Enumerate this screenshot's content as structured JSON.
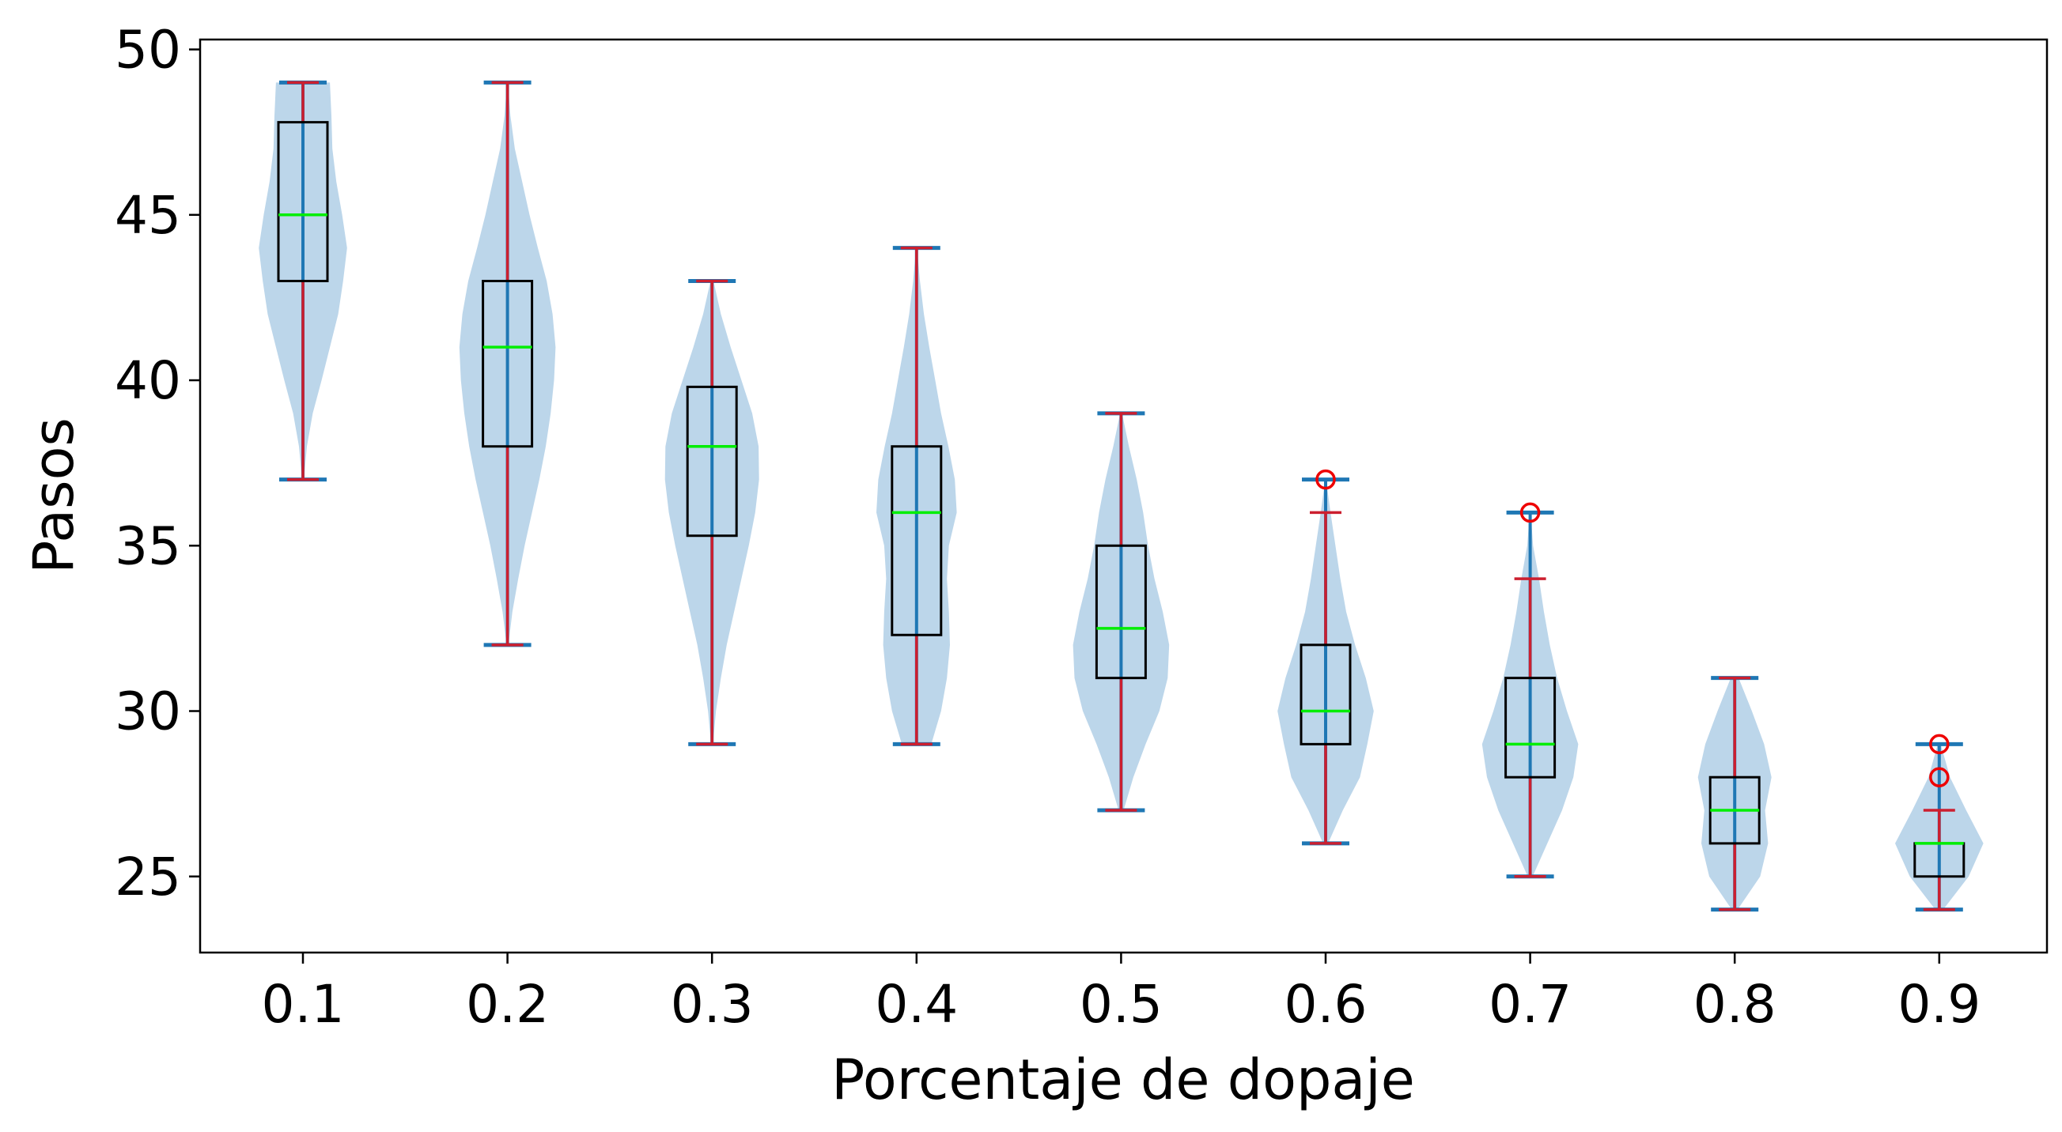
{
  "chart_data": {
    "type": "violin-box",
    "title": "",
    "xlabel": "Porcentaje de dopaje",
    "ylabel": "Pasos",
    "categories": [
      "0.1",
      "0.2",
      "0.3",
      "0.4",
      "0.5",
      "0.6",
      "0.7",
      "0.8",
      "0.9"
    ],
    "ylim": [
      22.7,
      50.3
    ],
    "yticks": [
      25,
      30,
      35,
      40,
      45,
      50
    ],
    "grid": false,
    "legend": "none",
    "colors": {
      "violin": "#bcd6ea",
      "violin_center": "#1f77b4",
      "whisker": "#cc1f2f",
      "median": "#00ee00",
      "box": "#000000",
      "outlier": "#ee0000"
    },
    "groups": [
      {
        "category": "0.1",
        "min": 37,
        "max": 49,
        "q1": 43,
        "median": 45,
        "q3": 47.8,
        "wlow": 37,
        "whigh": 49,
        "outliers": [],
        "density": [
          [
            37,
            0.02
          ],
          [
            38,
            0.08
          ],
          [
            39,
            0.2
          ],
          [
            40,
            0.38
          ],
          [
            41,
            0.55
          ],
          [
            42,
            0.72
          ],
          [
            43,
            0.82
          ],
          [
            44,
            0.9
          ],
          [
            45,
            0.8
          ],
          [
            46,
            0.68
          ],
          [
            47,
            0.6
          ],
          [
            48,
            0.58
          ],
          [
            49,
            0.55
          ]
        ]
      },
      {
        "category": "0.2",
        "min": 32,
        "max": 49,
        "q1": 38,
        "median": 41,
        "q3": 43,
        "wlow": 32,
        "whigh": 49,
        "outliers": [],
        "density": [
          [
            32,
            0.02
          ],
          [
            33,
            0.1
          ],
          [
            34,
            0.22
          ],
          [
            35,
            0.35
          ],
          [
            36,
            0.5
          ],
          [
            37,
            0.65
          ],
          [
            38,
            0.78
          ],
          [
            39,
            0.88
          ],
          [
            40,
            0.95
          ],
          [
            41,
            0.98
          ],
          [
            42,
            0.92
          ],
          [
            43,
            0.8
          ],
          [
            44,
            0.62
          ],
          [
            45,
            0.45
          ],
          [
            46,
            0.3
          ],
          [
            47,
            0.15
          ],
          [
            48,
            0.06
          ],
          [
            49,
            0.01
          ]
        ]
      },
      {
        "category": "0.3",
        "min": 29,
        "max": 43,
        "q1": 35.3,
        "median": 38,
        "q3": 39.8,
        "wlow": 29,
        "whigh": 43,
        "outliers": [],
        "density": [
          [
            29,
            0.02
          ],
          [
            30,
            0.08
          ],
          [
            31,
            0.18
          ],
          [
            32,
            0.3
          ],
          [
            33,
            0.45
          ],
          [
            34,
            0.6
          ],
          [
            35,
            0.75
          ],
          [
            36,
            0.88
          ],
          [
            37,
            0.96
          ],
          [
            38,
            0.95
          ],
          [
            39,
            0.82
          ],
          [
            40,
            0.6
          ],
          [
            41,
            0.38
          ],
          [
            42,
            0.18
          ],
          [
            43,
            0.03
          ]
        ]
      },
      {
        "category": "0.4",
        "min": 29,
        "max": 44,
        "q1": 32.3,
        "median": 36,
        "q3": 38,
        "wlow": 29,
        "whigh": 44,
        "outliers": [],
        "density": [
          [
            29,
            0.3
          ],
          [
            30,
            0.5
          ],
          [
            31,
            0.62
          ],
          [
            32,
            0.68
          ],
          [
            33,
            0.66
          ],
          [
            34,
            0.62
          ],
          [
            35,
            0.66
          ],
          [
            36,
            0.82
          ],
          [
            37,
            0.78
          ],
          [
            38,
            0.65
          ],
          [
            39,
            0.5
          ],
          [
            40,
            0.38
          ],
          [
            41,
            0.26
          ],
          [
            42,
            0.15
          ],
          [
            43,
            0.07
          ],
          [
            44,
            0.01
          ]
        ]
      },
      {
        "category": "0.5",
        "min": 27,
        "max": 39,
        "q1": 31,
        "median": 32.5,
        "q3": 35,
        "wlow": 27,
        "whigh": 39,
        "outliers": [],
        "density": [
          [
            27,
            0.05
          ],
          [
            28,
            0.25
          ],
          [
            29,
            0.5
          ],
          [
            30,
            0.78
          ],
          [
            31,
            0.95
          ],
          [
            32,
            0.98
          ],
          [
            33,
            0.85
          ],
          [
            34,
            0.68
          ],
          [
            35,
            0.55
          ],
          [
            36,
            0.45
          ],
          [
            37,
            0.32
          ],
          [
            38,
            0.16
          ],
          [
            39,
            0.02
          ]
        ]
      },
      {
        "category": "0.6",
        "min": 26,
        "max": 37,
        "q1": 29,
        "median": 30,
        "q3": 32,
        "wlow": 26,
        "whigh": 36,
        "outliers": [
          37
        ],
        "density": [
          [
            26,
            0.05
          ],
          [
            27,
            0.35
          ],
          [
            28,
            0.7
          ],
          [
            29,
            0.85
          ],
          [
            30,
            0.98
          ],
          [
            31,
            0.82
          ],
          [
            32,
            0.6
          ],
          [
            33,
            0.42
          ],
          [
            34,
            0.3
          ],
          [
            35,
            0.2
          ],
          [
            36,
            0.1
          ],
          [
            37,
            0.01
          ]
        ]
      },
      {
        "category": "0.7",
        "min": 25,
        "max": 36,
        "q1": 28,
        "median": 29,
        "q3": 31,
        "wlow": 25,
        "whigh": 34,
        "outliers": [
          36
        ],
        "density": [
          [
            25,
            0.05
          ],
          [
            26,
            0.35
          ],
          [
            27,
            0.65
          ],
          [
            28,
            0.88
          ],
          [
            29,
            0.98
          ],
          [
            30,
            0.75
          ],
          [
            31,
            0.55
          ],
          [
            32,
            0.4
          ],
          [
            33,
            0.28
          ],
          [
            34,
            0.18
          ],
          [
            35,
            0.06
          ],
          [
            36,
            0.01
          ]
        ]
      },
      {
        "category": "0.8",
        "min": 24,
        "max": 31,
        "q1": 26,
        "median": 27,
        "q3": 28,
        "wlow": 24,
        "whigh": 31,
        "outliers": [],
        "density": [
          [
            24,
            0.06
          ],
          [
            25,
            0.52
          ],
          [
            26,
            0.68
          ],
          [
            27,
            0.62
          ],
          [
            28,
            0.75
          ],
          [
            29,
            0.6
          ],
          [
            30,
            0.35
          ],
          [
            31,
            0.08
          ]
        ]
      },
      {
        "category": "0.9",
        "min": 24,
        "max": 29,
        "q1": 25,
        "median": 26,
        "q3": 26,
        "wlow": 24,
        "whigh": 27,
        "outliers": [
          28,
          29
        ],
        "density": [
          [
            24,
            0.08
          ],
          [
            25,
            0.6
          ],
          [
            26,
            0.9
          ],
          [
            27,
            0.55
          ],
          [
            28,
            0.22
          ],
          [
            29,
            0.03
          ]
        ]
      }
    ]
  }
}
